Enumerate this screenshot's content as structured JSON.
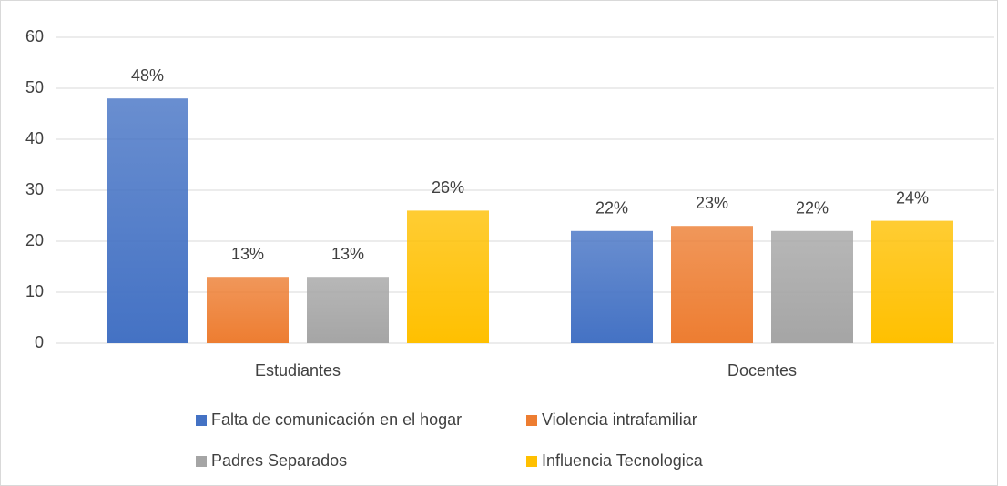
{
  "chart_data": {
    "type": "bar",
    "categories": [
      "Estudiantes",
      "Docentes"
    ],
    "series": [
      {
        "name": "Falta de comunicación en el hogar",
        "color": "#4472c4",
        "values": [
          48,
          22
        ],
        "value_labels": [
          "48%",
          "22%"
        ]
      },
      {
        "name": "Violencia intrafamiliar",
        "color": "#ed7d31",
        "values": [
          13,
          23
        ],
        "value_labels": [
          "13%",
          "23%"
        ]
      },
      {
        "name": "Padres Separados",
        "color": "#a5a5a5",
        "values": [
          13,
          22
        ],
        "value_labels": [
          "13%",
          "22%"
        ]
      },
      {
        "name": "Influencia Tecnologica",
        "color": "#ffc000",
        "values": [
          26,
          24
        ],
        "value_labels": [
          "26%",
          "24%"
        ]
      }
    ],
    "ylim": [
      0,
      60
    ],
    "yticks": [
      0,
      10,
      20,
      30,
      40,
      50,
      60
    ],
    "grid": true,
    "legend": "bottom"
  }
}
